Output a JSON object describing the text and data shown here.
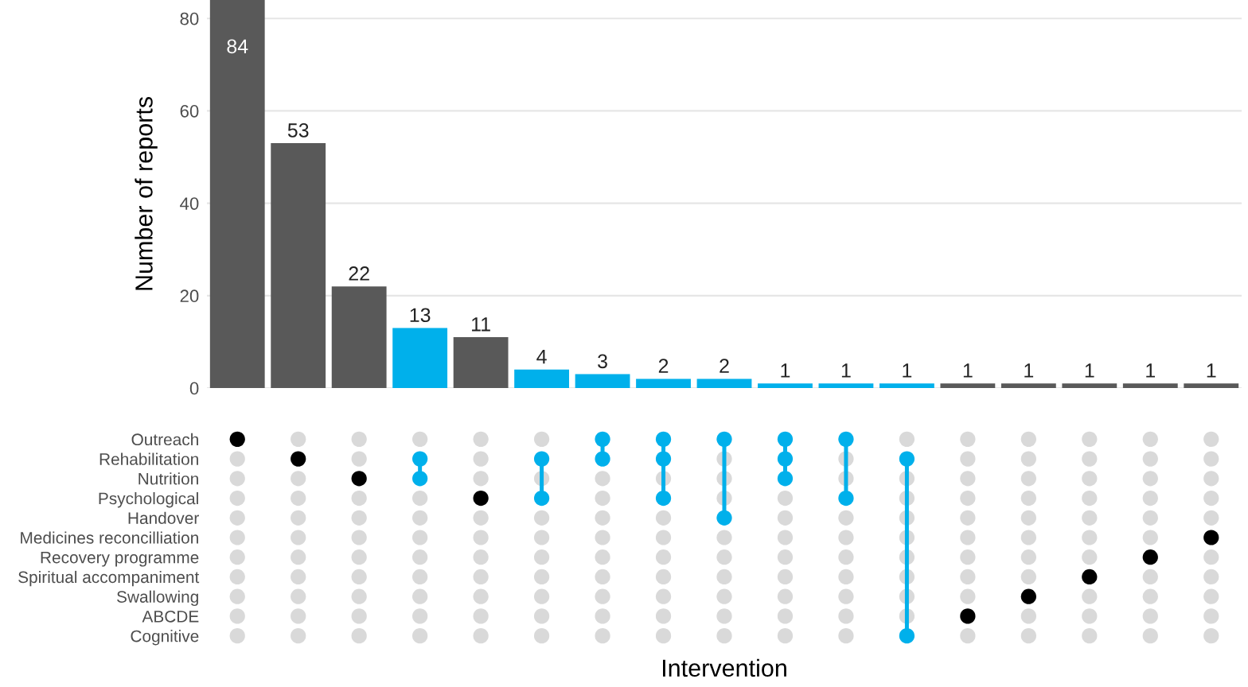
{
  "chart_data": [
    {
      "type": "bar",
      "ylabel": "Number of reports",
      "categories": [
        null,
        null,
        null,
        null,
        null,
        null,
        null,
        null,
        null,
        null,
        null,
        null,
        null,
        null,
        null,
        null,
        null
      ],
      "values": [
        84,
        53,
        22,
        13,
        11,
        4,
        3,
        2,
        2,
        1,
        1,
        1,
        1,
        1,
        1,
        1,
        1
      ],
      "colors": [
        "#595959",
        "#595959",
        "#595959",
        "#00b0eb",
        "#595959",
        "#00b0eb",
        "#00b0eb",
        "#00b0eb",
        "#00b0eb",
        "#00b0eb",
        "#00b0eb",
        "#00b0eb",
        "#595959",
        "#595959",
        "#595959",
        "#595959",
        "#595959"
      ],
      "ylim": [
        0,
        84
      ],
      "yticks": [
        0,
        20,
        40,
        60,
        80
      ],
      "grid": "y",
      "data_labels": true
    },
    {
      "type": "other",
      "xlabel": "Intervention",
      "y_categories": [
        "Outreach",
        "Rehabilitation",
        "Nutrition",
        "Psychological",
        "Handover",
        "Medicines reconcilliation",
        "Recovery programme",
        "Spiritual accompaniment",
        "Swallowing",
        "ABCDE",
        "Cognitive"
      ],
      "colors": [
        "#000000",
        "#d9d9d9",
        "#d9d9d9",
        "#d9d9d9",
        "#d9d9d9",
        "#d9d9d9",
        "#d9d9d9",
        "#d9d9d9",
        "#d9d9d9",
        "#d9d9d9",
        "#d9d9d9",
        "#d9d9d9",
        "#000000",
        "#d9d9d9",
        "#d9d9d9",
        "#d9d9d9",
        "#d9d9d9",
        "#d9d9d9",
        "#d9d9d9",
        "#d9d9d9",
        "#d9d9d9",
        "#d9d9d9",
        "#d9d9d9",
        "#d9d9d9",
        "#000000",
        "#d9d9d9",
        "#d9d9d9",
        "#d9d9d9",
        "#d9d9d9",
        "#d9d9d9",
        "#d9d9d9",
        "#d9d9d9",
        "#d9d9d9",
        "#d9d9d9",
        "#00b0eb",
        "#00b0eb",
        "#d9d9d9",
        "#d9d9d9",
        "#d9d9d9",
        "#d9d9d9",
        "#d9d9d9",
        "#d9d9d9",
        "#d9d9d9",
        "#d9d9d9",
        "#d9d9d9",
        "#d9d9d9",
        "#d9d9d9",
        "#000000",
        "#d9d9d9",
        "#d9d9d9",
        "#d9d9d9",
        "#d9d9d9",
        "#d9d9d9",
        "#d9d9d9",
        "#d9d9d9",
        "#d9d9d9",
        "#00b0eb",
        "#d9d9d9",
        "#00b0eb",
        "#d9d9d9",
        "#d9d9d9",
        "#d9d9d9",
        "#d9d9d9",
        "#d9d9d9",
        "#d9d9d9",
        "#d9d9d9",
        "#00b0eb",
        "#00b0eb",
        "#d9d9d9",
        "#d9d9d9",
        "#d9d9d9",
        "#d9d9d9",
        "#d9d9d9",
        "#d9d9d9",
        "#d9d9d9",
        "#d9d9d9",
        "#d9d9d9",
        "#00b0eb",
        "#00b0eb",
        "#d9d9d9",
        "#00b0eb",
        "#d9d9d9",
        "#d9d9d9",
        "#d9d9d9",
        "#d9d9d9",
        "#d9d9d9",
        "#d9d9d9",
        "#d9d9d9",
        "#00b0eb",
        "#d9d9d9",
        "#d9d9d9",
        "#d9d9d9",
        "#00b0eb",
        "#d9d9d9",
        "#d9d9d9",
        "#d9d9d9",
        "#d9d9d9",
        "#d9d9d9",
        "#d9d9d9",
        "#00b0eb",
        "#00b0eb",
        "#00b0eb",
        "#d9d9d9",
        "#d9d9d9",
        "#d9d9d9",
        "#d9d9d9",
        "#d9d9d9",
        "#d9d9d9",
        "#d9d9d9",
        "#d9d9d9",
        "#00b0eb",
        "#d9d9d9",
        "#d9d9d9",
        "#00b0eb",
        "#d9d9d9",
        "#d9d9d9",
        "#d9d9d9",
        "#d9d9d9",
        "#d9d9d9",
        "#d9d9d9",
        "#d9d9d9",
        "#d9d9d9",
        "#00b0eb",
        "#d9d9d9",
        "#d9d9d9",
        "#d9d9d9",
        "#d9d9d9",
        "#d9d9d9",
        "#d9d9d9",
        "#d9d9d9",
        "#d9d9d9",
        "#00b0eb",
        "#d9d9d9",
        "#d9d9d9",
        "#d9d9d9",
        "#d9d9d9",
        "#d9d9d9",
        "#d9d9d9",
        "#d9d9d9",
        "#d9d9d9",
        "#d9d9d9",
        "#000000",
        "#d9d9d9",
        "#d9d9d9",
        "#d9d9d9",
        "#d9d9d9",
        "#d9d9d9",
        "#d9d9d9",
        "#d9d9d9",
        "#d9d9d9",
        "#d9d9d9",
        "#000000",
        "#d9d9d9",
        "#d9d9d9",
        "#d9d9d9",
        "#d9d9d9",
        "#d9d9d9",
        "#d9d9d9",
        "#d9d9d9",
        "#d9d9d9",
        "#d9d9d9",
        "#000000",
        "#d9d9d9",
        "#d9d9d9",
        "#d9d9d9",
        "#d9d9d9",
        "#d9d9d9",
        "#d9d9d9",
        "#d9d9d9",
        "#d9d9d9",
        "#d9d9d9",
        "#000000",
        "#d9d9d9",
        "#d9d9d9",
        "#d9d9d9",
        "#d9d9d9",
        "#d9d9d9",
        "#d9d9d9",
        "#d9d9d9",
        "#d9d9d9",
        "#d9d9d9",
        "#000000",
        "#d9d9d9",
        "#d9d9d9",
        "#d9d9d9",
        "#d9d9d9",
        "#d9d9d9"
      ]
    }
  ]
}
